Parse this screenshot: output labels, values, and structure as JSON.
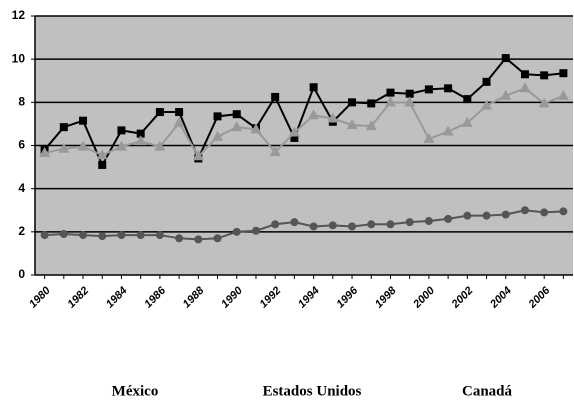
{
  "chart_data": {
    "type": "line",
    "categories": [
      "1980",
      null,
      "1982",
      null,
      "1984",
      null,
      "1986",
      null,
      "1988",
      null,
      "1990",
      null,
      "1992",
      null,
      "1994",
      null,
      "1996",
      null,
      "1998",
      null,
      "2000",
      null,
      "2002",
      null,
      "2004",
      null,
      "2006",
      null
    ],
    "series": [
      {
        "name": "México",
        "color": "#000000",
        "marker": "square",
        "values": [
          5.8,
          6.85,
          7.15,
          5.1,
          6.7,
          6.55,
          7.55,
          7.55,
          5.4,
          7.35,
          7.45,
          6.8,
          8.25,
          6.35,
          8.7,
          7.1,
          8.0,
          7.95,
          8.45,
          8.4,
          8.6,
          8.65,
          8.15,
          8.95,
          10.05,
          9.3,
          9.25,
          9.35
        ]
      },
      {
        "name": "Estados Unidos",
        "color": "#999999",
        "marker": "triangle",
        "values": [
          5.65,
          5.85,
          5.95,
          5.55,
          5.95,
          6.2,
          5.95,
          7.05,
          5.5,
          6.4,
          6.85,
          6.75,
          5.7,
          6.6,
          7.4,
          7.25,
          6.95,
          6.9,
          8.0,
          8.0,
          6.3,
          6.65,
          7.05,
          7.85,
          8.3,
          8.65,
          7.95,
          8.3
        ]
      },
      {
        "name": "Canadá",
        "color": "#555555",
        "marker": "circle",
        "values": [
          1.85,
          1.9,
          1.85,
          1.8,
          1.85,
          1.85,
          1.85,
          1.7,
          1.65,
          1.7,
          2.0,
          2.05,
          2.35,
          2.45,
          2.25,
          2.3,
          2.25,
          2.35,
          2.35,
          2.45,
          2.5,
          2.6,
          2.75,
          2.75,
          2.8,
          3.0,
          2.9,
          2.95
        ]
      }
    ],
    "ylim": [
      0,
      12
    ],
    "yticks": [
      0,
      2,
      4,
      6,
      8,
      10,
      12
    ],
    "grid": true,
    "background": "#c0c0c0",
    "legend": "bottom"
  }
}
